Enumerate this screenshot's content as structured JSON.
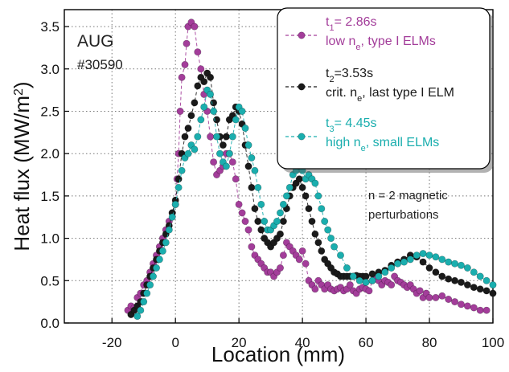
{
  "chart_data": {
    "type": "scatter",
    "xlabel": "Location (mm)",
    "ylabel": "Heat flux (MW/m",
    "ylabel_sup": "2",
    "ylabel_close": ")",
    "xlim": [
      -35,
      100
    ],
    "ylim": [
      0,
      3.7
    ],
    "xticks": [
      -20,
      0,
      20,
      40,
      60,
      80,
      100
    ],
    "yticks": [
      0.0,
      0.5,
      1.0,
      1.5,
      2.0,
      2.5,
      3.0,
      3.5
    ],
    "xtick_labels": [
      "-20",
      "0",
      "20",
      "40",
      "60",
      "80",
      "100"
    ],
    "ytick_labels": [
      "0.0",
      "0.5",
      "1.0",
      "1.5",
      "2.0",
      "2.5",
      "3.0",
      "3.5"
    ],
    "grid": true,
    "legend_position": "top-right",
    "annotations": {
      "device": "AUG",
      "shot": "#30590",
      "note_line1": "n = 2 magnetic",
      "note_line2": "perturbations"
    },
    "series": [
      {
        "color": "#a33d9a",
        "legend_t": "t",
        "legend_sub": "1",
        "legend_time": "= 2.86s",
        "legend_l2a": "low n",
        "legend_l2sub": "e",
        "legend_l2b": ", type I ELMs",
        "points": [
          [
            -15,
            0.15
          ],
          [
            -14,
            0.2
          ],
          [
            -13,
            0.18
          ],
          [
            -12,
            0.3
          ],
          [
            -11,
            0.35
          ],
          [
            -10,
            0.45
          ],
          [
            -9,
            0.5
          ],
          [
            -8,
            0.6
          ],
          [
            -7,
            0.7
          ],
          [
            -6,
            0.8
          ],
          [
            -5,
            0.9
          ],
          [
            -4,
            1.0
          ],
          [
            -3,
            1.1
          ],
          [
            -2,
            1.2
          ],
          [
            -1,
            1.3
          ],
          [
            0,
            1.4
          ],
          [
            0.5,
            1.7
          ],
          [
            1,
            2.0
          ],
          [
            1.5,
            2.5
          ],
          [
            2,
            2.9
          ],
          [
            3,
            3.05
          ],
          [
            3.5,
            3.3
          ],
          [
            4,
            3.5
          ],
          [
            5,
            3.55
          ],
          [
            6,
            3.5
          ],
          [
            7,
            3.2
          ],
          [
            8,
            3.0
          ],
          [
            9,
            2.7
          ],
          [
            10,
            2.5
          ],
          [
            11,
            2.2
          ],
          [
            12,
            1.9
          ],
          [
            13,
            1.75
          ],
          [
            14,
            1.8
          ],
          [
            15,
            1.85
          ],
          [
            16,
            2.0
          ],
          [
            17,
            2.0
          ],
          [
            18,
            1.9
          ],
          [
            19,
            1.7
          ],
          [
            20,
            1.4
          ],
          [
            21,
            1.3
          ],
          [
            22,
            1.2
          ],
          [
            23,
            1.1
          ],
          [
            24,
            0.9
          ],
          [
            25,
            0.8
          ],
          [
            26,
            0.75
          ],
          [
            27,
            0.7
          ],
          [
            28,
            0.65
          ],
          [
            29,
            0.6
          ],
          [
            30,
            0.6
          ],
          [
            31,
            0.55
          ],
          [
            32,
            0.6
          ],
          [
            33,
            0.65
          ],
          [
            34,
            0.8
          ],
          [
            35,
            0.95
          ],
          [
            36,
            0.9
          ],
          [
            37,
            0.85
          ],
          [
            38,
            0.8
          ],
          [
            39,
            0.75
          ],
          [
            40,
            0.85
          ],
          [
            41,
            0.7
          ],
          [
            42,
            0.5
          ],
          [
            43,
            0.45
          ],
          [
            44,
            0.4
          ],
          [
            45,
            0.5
          ],
          [
            46,
            0.45
          ],
          [
            47,
            0.4
          ],
          [
            48,
            0.45
          ],
          [
            49,
            0.4
          ],
          [
            50,
            0.38
          ],
          [
            51,
            0.4
          ],
          [
            52,
            0.42
          ],
          [
            53,
            0.38
          ],
          [
            54,
            0.4
          ],
          [
            55,
            0.45
          ],
          [
            56,
            0.38
          ],
          [
            57,
            0.35
          ],
          [
            58,
            0.4
          ],
          [
            59,
            0.42
          ],
          [
            60,
            0.4
          ],
          [
            61,
            0.38
          ],
          [
            62,
            0.5
          ],
          [
            63,
            0.55
          ],
          [
            64,
            0.5
          ],
          [
            65,
            0.45
          ],
          [
            66,
            0.5
          ],
          [
            67,
            0.48
          ],
          [
            68,
            0.45
          ],
          [
            69,
            0.55
          ],
          [
            70,
            0.5
          ],
          [
            71,
            0.48
          ],
          [
            72,
            0.45
          ],
          [
            73,
            0.42
          ],
          [
            74,
            0.45
          ],
          [
            75,
            0.4
          ],
          [
            76,
            0.35
          ],
          [
            77,
            0.38
          ],
          [
            78,
            0.3
          ],
          [
            79,
            0.35
          ],
          [
            80,
            0.3
          ],
          [
            82,
            0.3
          ],
          [
            84,
            0.32
          ],
          [
            86,
            0.28
          ],
          [
            88,
            0.25
          ],
          [
            90,
            0.22
          ],
          [
            92,
            0.2
          ],
          [
            94,
            0.18
          ],
          [
            96,
            0.15
          ],
          [
            98,
            0.15
          ]
        ]
      },
      {
        "color": "#1a1a1a",
        "legend_t": "t",
        "legend_sub": "2",
        "legend_time": "=3.53s",
        "legend_l2a": "crit. n",
        "legend_l2sub": "e",
        "legend_l2b": ", last type I ELM",
        "points": [
          [
            -14,
            0.1
          ],
          [
            -13,
            0.15
          ],
          [
            -12,
            0.2
          ],
          [
            -11,
            0.25
          ],
          [
            -10,
            0.35
          ],
          [
            -9,
            0.45
          ],
          [
            -8,
            0.55
          ],
          [
            -7,
            0.65
          ],
          [
            -6,
            0.75
          ],
          [
            -5,
            0.85
          ],
          [
            -4,
            0.95
          ],
          [
            -3,
            1.05
          ],
          [
            -2,
            1.15
          ],
          [
            -1,
            1.3
          ],
          [
            0,
            1.45
          ],
          [
            1,
            1.7
          ],
          [
            2,
            2.0
          ],
          [
            3,
            2.2
          ],
          [
            4,
            2.3
          ],
          [
            5,
            2.45
          ],
          [
            6,
            2.6
          ],
          [
            7,
            2.8
          ],
          [
            8,
            2.9
          ],
          [
            9,
            2.85
          ],
          [
            10,
            2.95
          ],
          [
            11,
            2.9
          ],
          [
            12,
            2.6
          ],
          [
            13,
            2.4
          ],
          [
            14,
            2.2
          ],
          [
            15,
            2.1
          ],
          [
            16,
            2.2
          ],
          [
            17,
            2.4
          ],
          [
            18,
            2.45
          ],
          [
            19,
            2.55
          ],
          [
            20,
            2.5
          ],
          [
            21,
            2.35
          ],
          [
            22,
            2.1
          ],
          [
            23,
            1.85
          ],
          [
            24,
            1.6
          ],
          [
            25,
            1.35
          ],
          [
            26,
            1.2
          ],
          [
            27,
            1.1
          ],
          [
            28,
            1.0
          ],
          [
            29,
            0.95
          ],
          [
            30,
            0.9
          ],
          [
            31,
            0.95
          ],
          [
            32,
            1.0
          ],
          [
            33,
            1.05
          ],
          [
            34,
            1.2
          ],
          [
            35,
            1.35
          ],
          [
            36,
            1.5
          ],
          [
            37,
            1.6
          ],
          [
            38,
            1.65
          ],
          [
            39,
            1.7
          ],
          [
            40,
            1.6
          ],
          [
            41,
            1.5
          ],
          [
            42,
            1.35
          ],
          [
            43,
            1.2
          ],
          [
            44,
            1.05
          ],
          [
            45,
            0.95
          ],
          [
            46,
            0.85
          ],
          [
            47,
            0.75
          ],
          [
            48,
            0.7
          ],
          [
            49,
            0.65
          ],
          [
            50,
            0.6
          ],
          [
            51,
            0.58
          ],
          [
            52,
            0.55
          ],
          [
            53,
            0.55
          ],
          [
            54,
            0.55
          ],
          [
            55,
            0.55
          ],
          [
            56,
            0.55
          ],
          [
            57,
            0.56
          ],
          [
            58,
            0.55
          ],
          [
            59,
            0.55
          ],
          [
            60,
            0.55
          ],
          [
            62,
            0.58
          ],
          [
            64,
            0.6
          ],
          [
            66,
            0.62
          ],
          [
            68,
            0.68
          ],
          [
            70,
            0.72
          ],
          [
            72,
            0.75
          ],
          [
            74,
            0.8
          ],
          [
            76,
            0.78
          ],
          [
            78,
            0.72
          ],
          [
            80,
            0.65
          ],
          [
            82,
            0.6
          ],
          [
            84,
            0.55
          ],
          [
            86,
            0.52
          ],
          [
            88,
            0.5
          ],
          [
            90,
            0.48
          ],
          [
            92,
            0.45
          ],
          [
            94,
            0.42
          ],
          [
            96,
            0.4
          ],
          [
            98,
            0.38
          ],
          [
            100,
            0.35
          ]
        ]
      },
      {
        "color": "#1aaeae",
        "legend_t": "t",
        "legend_sub": "3",
        "legend_time": "= 4.45s",
        "legend_l2a": "high n",
        "legend_l2sub": "e",
        "legend_l2b": ", small ELMs",
        "points": [
          [
            -12,
            0.08
          ],
          [
            -11,
            0.15
          ],
          [
            -10,
            0.25
          ],
          [
            -9,
            0.35
          ],
          [
            -8,
            0.45
          ],
          [
            -7,
            0.55
          ],
          [
            -6,
            0.65
          ],
          [
            -5,
            0.75
          ],
          [
            -4,
            0.85
          ],
          [
            -3,
            0.95
          ],
          [
            -2,
            1.1
          ],
          [
            -1,
            1.25
          ],
          [
            0,
            1.4
          ],
          [
            1,
            1.6
          ],
          [
            2,
            1.8
          ],
          [
            3,
            1.95
          ],
          [
            4,
            2.0
          ],
          [
            5,
            2.1
          ],
          [
            6,
            2.05
          ],
          [
            7,
            2.2
          ],
          [
            8,
            2.4
          ],
          [
            9,
            2.55
          ],
          [
            10,
            2.75
          ],
          [
            11,
            2.7
          ],
          [
            12,
            2.5
          ],
          [
            13,
            2.2
          ],
          [
            14,
            2.0
          ],
          [
            15,
            1.9
          ],
          [
            16,
            1.85
          ],
          [
            17,
            2.0
          ],
          [
            18,
            2.2
          ],
          [
            19,
            2.4
          ],
          [
            20,
            2.55
          ],
          [
            21,
            2.5
          ],
          [
            22,
            2.3
          ],
          [
            23,
            2.1
          ],
          [
            24,
            1.95
          ],
          [
            25,
            1.8
          ],
          [
            26,
            1.6
          ],
          [
            27,
            1.4
          ],
          [
            28,
            1.2
          ],
          [
            29,
            1.1
          ],
          [
            30,
            1.1
          ],
          [
            31,
            1.15
          ],
          [
            32,
            1.2
          ],
          [
            33,
            1.3
          ],
          [
            34,
            1.4
          ],
          [
            35,
            1.5
          ],
          [
            36,
            1.6
          ],
          [
            37,
            1.75
          ],
          [
            38,
            1.8
          ],
          [
            39,
            1.85
          ],
          [
            40,
            1.8
          ],
          [
            41,
            1.7
          ],
          [
            42,
            1.75
          ],
          [
            43,
            1.7
          ],
          [
            44,
            1.65
          ],
          [
            45,
            1.5
          ],
          [
            46,
            1.35
          ],
          [
            47,
            1.2
          ],
          [
            48,
            1.1
          ],
          [
            49,
            1.0
          ],
          [
            50,
            0.9
          ],
          [
            52,
            0.8
          ],
          [
            54,
            0.65
          ],
          [
            56,
            0.55
          ],
          [
            58,
            0.5
          ],
          [
            60,
            0.48
          ],
          [
            62,
            0.5
          ],
          [
            64,
            0.55
          ],
          [
            66,
            0.6
          ],
          [
            68,
            0.65
          ],
          [
            70,
            0.7
          ],
          [
            72,
            0.72
          ],
          [
            74,
            0.75
          ],
          [
            76,
            0.8
          ],
          [
            78,
            0.82
          ],
          [
            80,
            0.8
          ],
          [
            82,
            0.78
          ],
          [
            84,
            0.75
          ],
          [
            86,
            0.72
          ],
          [
            88,
            0.7
          ],
          [
            90,
            0.68
          ],
          [
            92,
            0.65
          ],
          [
            94,
            0.6
          ],
          [
            96,
            0.55
          ],
          [
            98,
            0.5
          ],
          [
            100,
            0.45
          ]
        ]
      }
    ]
  }
}
